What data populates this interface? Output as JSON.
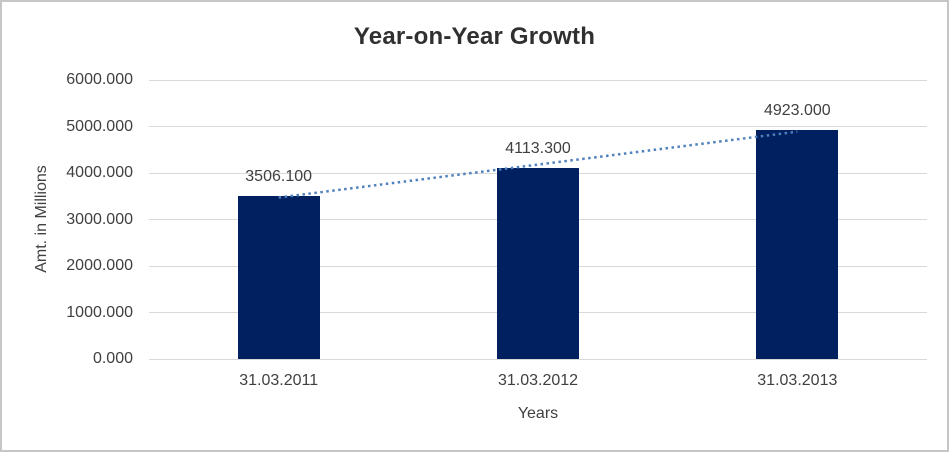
{
  "chart_data": {
    "type": "bar",
    "title": "Year-on-Year Growth",
    "xlabel": "Years",
    "ylabel": "Amt. in Millions",
    "categories": [
      "31.03.2011",
      "31.03.2012",
      "31.03.2013"
    ],
    "values": [
      3506.1,
      4113.3,
      4923.0
    ],
    "data_labels": [
      "3506.100",
      "4113.300",
      "4923.000"
    ],
    "ylim": [
      0,
      6000
    ],
    "ytick_interval": 1000,
    "ytick_labels": [
      "0.000",
      "1000.000",
      "2000.000",
      "3000.000",
      "4000.000",
      "5000.000",
      "6000.000"
    ],
    "grid": "horizontal",
    "legend": "none",
    "trendline": {
      "type": "linear",
      "style": "dotted"
    },
    "colors": {
      "bar": "#002060",
      "trendline": "#4f81bd",
      "gridline": "#d9d9d9",
      "axis_text": "#404040",
      "title_text": "#303030",
      "frame_border": "#c6c6c6",
      "background": "#ffffff"
    }
  }
}
